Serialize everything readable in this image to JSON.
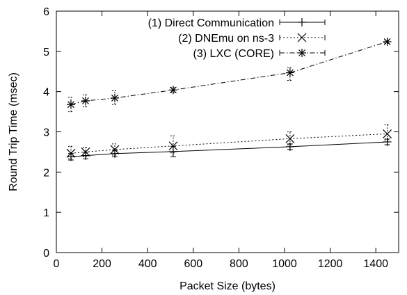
{
  "chart_data": {
    "type": "line",
    "xlabel": "Packet Size (bytes)",
    "ylabel": "Round Trip Time (msec)",
    "xlim": [
      0,
      1500
    ],
    "ylim": [
      0,
      6
    ],
    "x_ticks": [
      0,
      200,
      400,
      600,
      800,
      1000,
      1200,
      1400
    ],
    "y_ticks": [
      0,
      1,
      2,
      3,
      4,
      5,
      6
    ],
    "grid": false,
    "legend_position": "top-right",
    "x": [
      64,
      128,
      256,
      512,
      1024,
      1450
    ],
    "series": [
      {
        "name": "(1) Direct Communication",
        "marker": "plus",
        "line_style": "solid",
        "values": [
          2.38,
          2.41,
          2.46,
          2.51,
          2.63,
          2.75
        ],
        "err_low": [
          2.3,
          2.33,
          2.38,
          2.38,
          2.56,
          2.68
        ],
        "err_high": [
          2.46,
          2.49,
          2.54,
          2.64,
          2.7,
          2.82
        ]
      },
      {
        "name": "(2) DNEmu on ns-3",
        "marker": "x",
        "line_style": "dotted",
        "values": [
          2.47,
          2.5,
          2.56,
          2.65,
          2.83,
          2.95
        ],
        "err_low": [
          2.33,
          2.38,
          2.42,
          2.48,
          2.68,
          2.8
        ],
        "err_high": [
          2.64,
          2.62,
          2.7,
          2.9,
          3.0,
          3.18
        ]
      },
      {
        "name": "(3) LXC (CORE)",
        "marker": "asterisk",
        "line_style": "dashdot",
        "values": [
          3.68,
          3.77,
          3.84,
          4.04,
          4.47,
          5.24
        ],
        "err_low": [
          3.5,
          3.62,
          3.68,
          3.98,
          4.28,
          5.2
        ],
        "err_high": [
          3.86,
          3.92,
          4.02,
          4.1,
          4.6,
          5.28
        ]
      }
    ]
  }
}
